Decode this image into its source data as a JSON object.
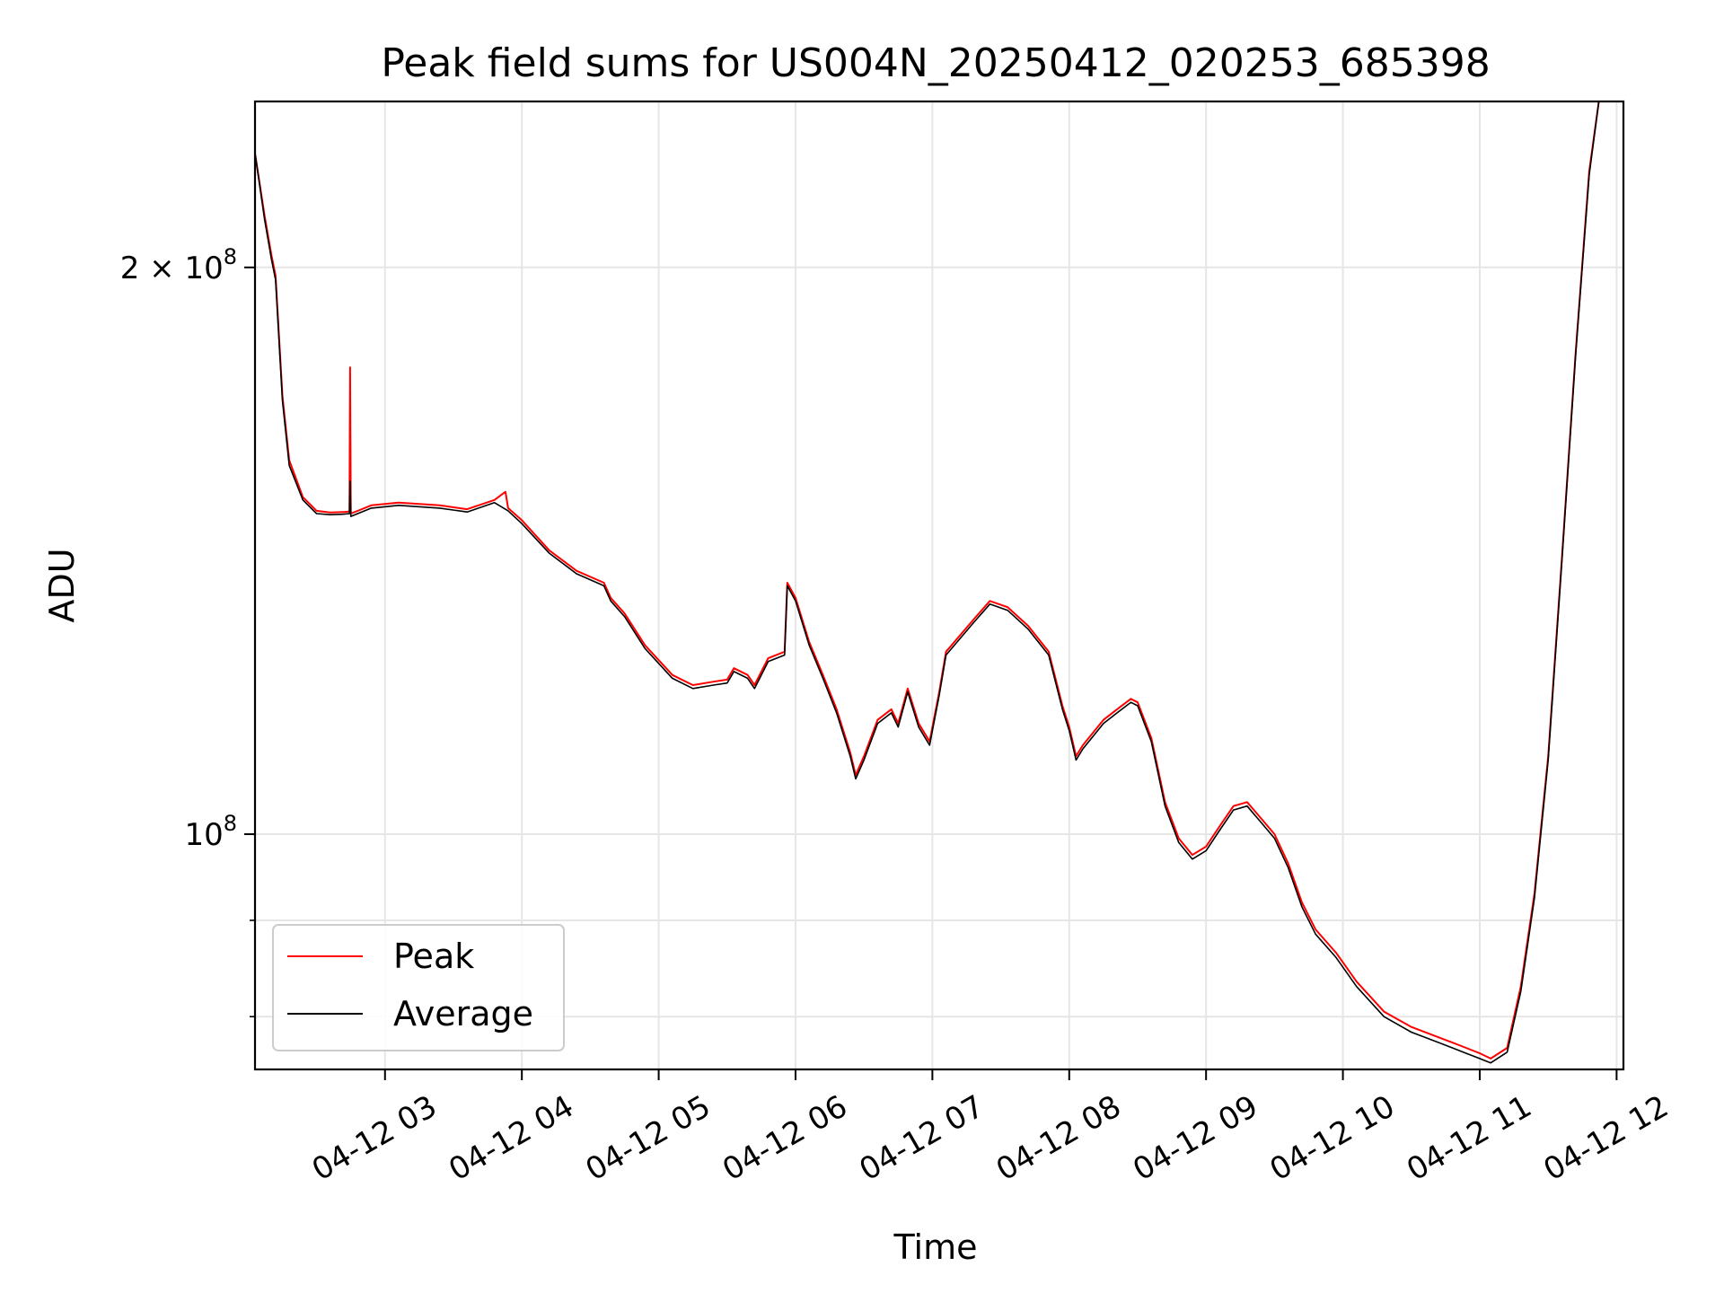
{
  "chart_data": {
    "type": "line",
    "title": "Peak field sums for US004N_20250412_020253_685398",
    "xlabel": "Time",
    "ylabel": "ADU",
    "y_scale": "log",
    "ylim": [
      75000000.0,
      245000000.0
    ],
    "grid": true,
    "legend_position": "lower-left",
    "x_hour_range": [
      2.05,
      12.05
    ],
    "x_ticks": [
      {
        "hour": 3,
        "label": "04-12 03"
      },
      {
        "hour": 4,
        "label": "04-12 04"
      },
      {
        "hour": 5,
        "label": "04-12 05"
      },
      {
        "hour": 6,
        "label": "04-12 06"
      },
      {
        "hour": 7,
        "label": "04-12 07"
      },
      {
        "hour": 8,
        "label": "04-12 08"
      },
      {
        "hour": 9,
        "label": "04-12 09"
      },
      {
        "hour": 10,
        "label": "04-12 10"
      },
      {
        "hour": 11,
        "label": "04-12 11"
      },
      {
        "hour": 12,
        "label": "04-12 12"
      }
    ],
    "y_ticks": [
      {
        "value": 200000000,
        "base": "2 × 10",
        "exp": "8"
      },
      {
        "value": 100000000,
        "base": "10",
        "exp": "8"
      }
    ],
    "series": [
      {
        "name": "Peak",
        "color": "#ff0000",
        "points": [
          [
            2.05,
            230000000
          ],
          [
            2.12,
            213000000
          ],
          [
            2.17,
            203000000
          ],
          [
            2.2,
            198000000
          ],
          [
            2.25,
            171000000
          ],
          [
            2.3,
            158000000
          ],
          [
            2.4,
            151000000
          ],
          [
            2.5,
            148500000
          ],
          [
            2.6,
            148200000
          ],
          [
            2.7,
            148300000
          ],
          [
            2.74,
            148400000
          ],
          [
            2.745,
            177000000
          ],
          [
            2.75,
            148000000
          ],
          [
            2.9,
            149500000
          ],
          [
            3.1,
            150000000
          ],
          [
            3.4,
            149500000
          ],
          [
            3.6,
            148800000
          ],
          [
            3.8,
            150500000
          ],
          [
            3.88,
            152000000
          ],
          [
            3.9,
            149000000
          ],
          [
            4.0,
            146800000
          ],
          [
            4.2,
            141500000
          ],
          [
            4.4,
            138000000
          ],
          [
            4.6,
            136000000
          ],
          [
            4.65,
            133500000
          ],
          [
            4.75,
            131000000
          ],
          [
            4.9,
            126000000
          ],
          [
            5.1,
            121500000
          ],
          [
            5.25,
            120000000
          ],
          [
            5.4,
            120500000
          ],
          [
            5.5,
            120800000
          ],
          [
            5.55,
            122500000
          ],
          [
            5.65,
            121500000
          ],
          [
            5.7,
            120000000
          ],
          [
            5.8,
            124000000
          ],
          [
            5.92,
            125000000
          ],
          [
            5.94,
            136000000
          ],
          [
            6.0,
            133500000
          ],
          [
            6.1,
            126500000
          ],
          [
            6.2,
            121500000
          ],
          [
            6.3,
            116500000
          ],
          [
            6.4,
            110500000
          ],
          [
            6.44,
            107500000
          ],
          [
            6.5,
            110000000
          ],
          [
            6.6,
            115000000
          ],
          [
            6.7,
            116500000
          ],
          [
            6.75,
            114500000
          ],
          [
            6.82,
            119500000
          ],
          [
            6.9,
            114500000
          ],
          [
            6.98,
            112000000
          ],
          [
            7.05,
            119000000
          ],
          [
            7.1,
            125000000
          ],
          [
            7.3,
            130000000
          ],
          [
            7.42,
            133000000
          ],
          [
            7.55,
            132000000
          ],
          [
            7.7,
            129000000
          ],
          [
            7.85,
            125000000
          ],
          [
            7.95,
            117000000
          ],
          [
            8.0,
            114000000
          ],
          [
            8.05,
            110000000
          ],
          [
            8.1,
            111500000
          ],
          [
            8.25,
            115000000
          ],
          [
            8.35,
            116500000
          ],
          [
            8.45,
            118000000
          ],
          [
            8.5,
            117500000
          ],
          [
            8.6,
            112500000
          ],
          [
            8.7,
            104000000
          ],
          [
            8.8,
            99500000
          ],
          [
            8.9,
            97500000
          ],
          [
            9.0,
            98500000
          ],
          [
            9.1,
            101000000
          ],
          [
            9.2,
            103500000
          ],
          [
            9.3,
            104000000
          ],
          [
            9.4,
            102000000
          ],
          [
            9.5,
            100000000
          ],
          [
            9.6,
            96500000
          ],
          [
            9.7,
            92000000
          ],
          [
            9.8,
            89000000
          ],
          [
            9.95,
            86500000
          ],
          [
            10.1,
            83500000
          ],
          [
            10.3,
            80500000
          ],
          [
            10.5,
            79000000
          ],
          [
            10.7,
            78000000
          ],
          [
            10.8,
            77500000
          ],
          [
            10.9,
            77000000
          ],
          [
            11.0,
            76500000
          ],
          [
            11.08,
            76000000
          ],
          [
            11.2,
            77000000
          ],
          [
            11.3,
            83000000
          ],
          [
            11.4,
            93000000
          ],
          [
            11.5,
            110000000
          ],
          [
            11.6,
            140000000
          ],
          [
            11.7,
            180000000
          ],
          [
            11.8,
            225000000
          ],
          [
            11.87,
            250000000
          ],
          [
            12.05,
            250000000
          ]
        ]
      },
      {
        "name": "Average",
        "color": "#000000",
        "points": [
          [
            2.05,
            230000000
          ],
          [
            2.12,
            212000000
          ],
          [
            2.17,
            202000000
          ],
          [
            2.2,
            197000000
          ],
          [
            2.25,
            170000000
          ],
          [
            2.3,
            157000000
          ],
          [
            2.4,
            150500000
          ],
          [
            2.5,
            148000000
          ],
          [
            2.6,
            147800000
          ],
          [
            2.7,
            147900000
          ],
          [
            2.74,
            148000000
          ],
          [
            2.745,
            154000000
          ],
          [
            2.75,
            147500000
          ],
          [
            2.9,
            149000000
          ],
          [
            3.1,
            149500000
          ],
          [
            3.4,
            149000000
          ],
          [
            3.6,
            148300000
          ],
          [
            3.8,
            150000000
          ],
          [
            3.9,
            148500000
          ],
          [
            4.0,
            146200000
          ],
          [
            4.2,
            141000000
          ],
          [
            4.4,
            137500000
          ],
          [
            4.6,
            135500000
          ],
          [
            4.65,
            133000000
          ],
          [
            4.75,
            130500000
          ],
          [
            4.9,
            125500000
          ],
          [
            5.1,
            121000000
          ],
          [
            5.25,
            119500000
          ],
          [
            5.4,
            120000000
          ],
          [
            5.5,
            120300000
          ],
          [
            5.55,
            122000000
          ],
          [
            5.65,
            121000000
          ],
          [
            5.7,
            119500000
          ],
          [
            5.8,
            123500000
          ],
          [
            5.92,
            124500000
          ],
          [
            5.94,
            135500000
          ],
          [
            6.0,
            133000000
          ],
          [
            6.1,
            126000000
          ],
          [
            6.2,
            121000000
          ],
          [
            6.3,
            116000000
          ],
          [
            6.4,
            110000000
          ],
          [
            6.44,
            107000000
          ],
          [
            6.5,
            109500000
          ],
          [
            6.6,
            114500000
          ],
          [
            6.7,
            116000000
          ],
          [
            6.75,
            114000000
          ],
          [
            6.82,
            119000000
          ],
          [
            6.9,
            114000000
          ],
          [
            6.98,
            111500000
          ],
          [
            7.05,
            118500000
          ],
          [
            7.1,
            124500000
          ],
          [
            7.3,
            129500000
          ],
          [
            7.42,
            132500000
          ],
          [
            7.55,
            131500000
          ],
          [
            7.7,
            128500000
          ],
          [
            7.85,
            124500000
          ],
          [
            7.95,
            116500000
          ],
          [
            8.0,
            113500000
          ],
          [
            8.05,
            109500000
          ],
          [
            8.1,
            111000000
          ],
          [
            8.25,
            114500000
          ],
          [
            8.35,
            116000000
          ],
          [
            8.45,
            117500000
          ],
          [
            8.5,
            117000000
          ],
          [
            8.6,
            112000000
          ],
          [
            8.7,
            103500000
          ],
          [
            8.8,
            99000000
          ],
          [
            8.9,
            97000000
          ],
          [
            9.0,
            98000000
          ],
          [
            9.1,
            100500000
          ],
          [
            9.2,
            103000000
          ],
          [
            9.3,
            103500000
          ],
          [
            9.4,
            101500000
          ],
          [
            9.5,
            99500000
          ],
          [
            9.6,
            96000000
          ],
          [
            9.7,
            91500000
          ],
          [
            9.8,
            88500000
          ],
          [
            9.95,
            86000000
          ],
          [
            10.1,
            83000000
          ],
          [
            10.3,
            80000000
          ],
          [
            10.5,
            78500000
          ],
          [
            10.7,
            77500000
          ],
          [
            10.8,
            77000000
          ],
          [
            10.9,
            76500000
          ],
          [
            11.0,
            76000000
          ],
          [
            11.08,
            75600000
          ],
          [
            11.2,
            76600000
          ],
          [
            11.3,
            82500000
          ],
          [
            11.4,
            92500000
          ],
          [
            11.5,
            109500000
          ],
          [
            11.6,
            139500000
          ],
          [
            11.7,
            179500000
          ],
          [
            11.8,
            224000000
          ],
          [
            11.87,
            250000000
          ],
          [
            12.05,
            250000000
          ]
        ]
      }
    ]
  }
}
